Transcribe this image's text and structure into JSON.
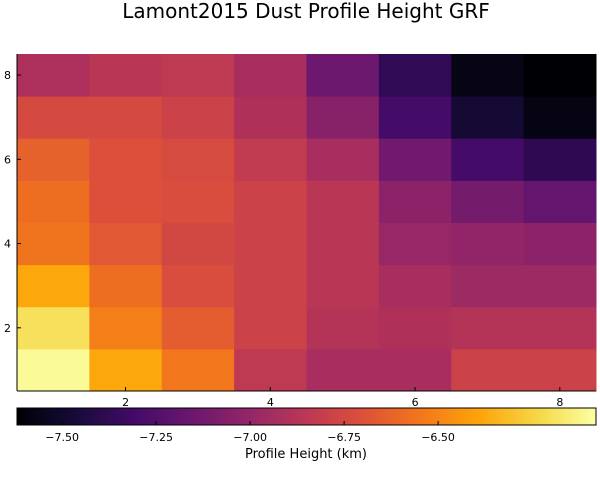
{
  "chart_data": {
    "type": "heatmap",
    "title": "Lamont2015 Dust Profile Height GRF",
    "x": [
      1,
      2,
      3,
      4,
      5,
      6,
      7,
      8
    ],
    "y": [
      1,
      2,
      3,
      4,
      5,
      6,
      7,
      8
    ],
    "xlim": [
      0.5,
      8.5
    ],
    "ylim": [
      0.5,
      8.5
    ],
    "xticks": [
      2,
      4,
      6,
      8
    ],
    "yticks": [
      2,
      4,
      6,
      8
    ],
    "colormap": "inferno",
    "color_range": [
      -7.62,
      -6.08
    ],
    "colorbar": {
      "label": "Profile Height (km)",
      "ticks": [
        -7.5,
        -7.25,
        -7.0,
        -6.75,
        -6.5
      ],
      "tick_labels": [
        "−7.50",
        "−7.25",
        "−7.00",
        "−6.75",
        "−6.50"
      ],
      "placement": "bottom"
    },
    "z": [
      [
        -6.1,
        -6.38,
        -6.55,
        -6.84,
        -6.93,
        -6.93,
        -6.78,
        -6.78
      ],
      [
        -6.2,
        -6.52,
        -6.65,
        -6.78,
        -6.88,
        -6.9,
        -6.88,
        -6.88
      ],
      [
        -6.38,
        -6.58,
        -6.72,
        -6.78,
        -6.86,
        -6.93,
        -6.97,
        -6.97
      ],
      [
        -6.56,
        -6.67,
        -6.75,
        -6.78,
        -6.86,
        -6.99,
        -7.01,
        -7.03
      ],
      [
        -6.58,
        -6.7,
        -6.72,
        -6.78,
        -6.86,
        -7.03,
        -7.12,
        -7.18
      ],
      [
        -6.63,
        -6.7,
        -6.73,
        -6.82,
        -6.93,
        -7.13,
        -7.3,
        -7.38
      ],
      [
        -6.74,
        -6.74,
        -6.78,
        -6.9,
        -7.05,
        -7.3,
        -7.48,
        -7.58
      ],
      [
        -6.91,
        -6.86,
        -6.84,
        -6.93,
        -7.15,
        -7.37,
        -7.57,
        -7.62
      ]
    ]
  }
}
